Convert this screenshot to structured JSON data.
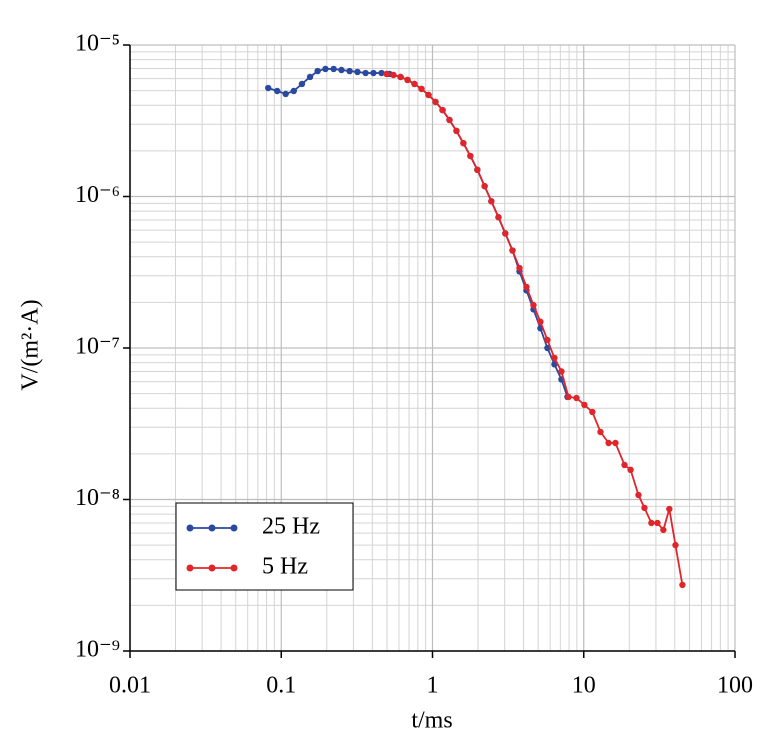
{
  "chart_data": {
    "type": "line",
    "xscale": "log",
    "yscale": "log",
    "xlabel": "t/ms",
    "ylabel": "V/(m²·A)",
    "xlim": [
      0.01,
      100
    ],
    "xticks": [
      0.01,
      0.1,
      1,
      10,
      100
    ],
    "ylim": [
      1e-09,
      1e-05
    ],
    "yticks": [
      {
        "value": 1e-09,
        "label": "10⁻⁹"
      },
      {
        "value": 1e-08,
        "label": "10⁻⁸"
      },
      {
        "value": 1e-07,
        "label": "10⁻⁷"
      },
      {
        "value": 1e-06,
        "label": "10⁻⁶"
      },
      {
        "value": 1e-05,
        "label": "10⁻⁵"
      }
    ],
    "grid": true,
    "minor_grid": true,
    "legend": "lower left",
    "series": [
      {
        "name": "25 Hz",
        "color": "#2a4aa0",
        "x": [
          0.082,
          0.094,
          0.107,
          0.121,
          0.137,
          0.155,
          0.174,
          0.196,
          0.222,
          0.25,
          0.283,
          0.319,
          0.361,
          0.407,
          0.46,
          0.52,
          0.615,
          0.684,
          0.76,
          0.846,
          0.941,
          1.047,
          1.165,
          1.295,
          1.44,
          1.6,
          1.78,
          1.98,
          2.21,
          2.45,
          2.73,
          3.03,
          3.38,
          3.76,
          4.18,
          4.65,
          5.17,
          5.75,
          6.4,
          7.12,
          7.8
        ],
        "values": [
          5.2e-06,
          4.97e-06,
          4.75e-06,
          4.97e-06,
          5.53e-06,
          6.15e-06,
          6.73e-06,
          6.95e-06,
          6.95e-06,
          6.84e-06,
          6.73e-06,
          6.64e-06,
          6.53e-06,
          6.53e-06,
          6.53e-06,
          6.44e-06,
          6.15e-06,
          5.88e-06,
          5.53e-06,
          5.13e-06,
          4.68e-06,
          4.21e-06,
          3.72e-06,
          3.2e-06,
          2.71e-06,
          2.25e-06,
          1.85e-06,
          1.5e-06,
          1.17e-06,
          9.3e-07,
          7.3e-07,
          5.7e-07,
          4.4e-07,
          3.2e-07,
          2.4e-07,
          1.8e-07,
          1.35e-07,
          1e-07,
          7.8e-08,
          6.2e-08,
          4.75e-08
        ]
      },
      {
        "name": "5 Hz",
        "color": "#e0262a",
        "x": [
          0.497,
          0.552,
          0.615,
          0.684,
          0.76,
          0.846,
          0.941,
          1.047,
          1.165,
          1.295,
          1.44,
          1.6,
          1.78,
          1.98,
          2.21,
          2.45,
          2.73,
          3.03,
          3.38,
          3.76,
          4.18,
          4.65,
          5.17,
          5.75,
          6.4,
          7.12,
          7.93,
          8.95,
          10.1,
          11.4,
          12.9,
          14.6,
          16.2,
          18.6,
          20.4,
          23,
          25.2,
          28,
          30.7,
          33.6,
          36.8,
          40.4,
          44.9
        ],
        "values": [
          6.44e-06,
          6.34e-06,
          6.15e-06,
          5.88e-06,
          5.53e-06,
          5.13e-06,
          4.68e-06,
          4.21e-06,
          3.72e-06,
          3.2e-06,
          2.71e-06,
          2.25e-06,
          1.85e-06,
          1.5e-06,
          1.17e-06,
          9.3e-07,
          7.3e-07,
          5.7e-07,
          4.4e-07,
          3.37e-07,
          2.53e-07,
          1.92e-07,
          1.49e-07,
          1.13e-07,
          8.6e-08,
          7e-08,
          4.75e-08,
          4.68e-08,
          4.21e-08,
          3.78e-08,
          2.79e-08,
          2.36e-08,
          2.36e-08,
          1.69e-08,
          1.57e-08,
          1.07e-08,
          8.8e-09,
          7e-09,
          7e-09,
          6.3e-09,
          8.65e-09,
          5e-09,
          2.73e-09
        ]
      }
    ]
  }
}
